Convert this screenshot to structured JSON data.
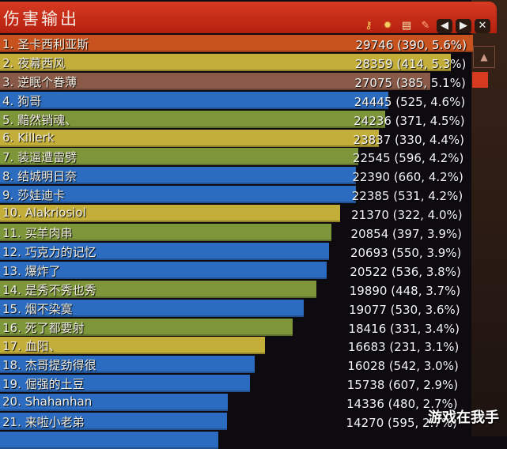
{
  "window": {
    "title": "伤害输出",
    "toolbar_icons": [
      "key-icon",
      "gear-icon",
      "document-icon",
      "report-icon",
      "prev-icon",
      "next-icon",
      "close-icon"
    ]
  },
  "max_value": 29746,
  "colors": {
    "orange": "#c8521e",
    "yellow": "#c2ae38",
    "brown": "#8a5a48",
    "blue": "#2b6cc0",
    "green": "#7d963a"
  },
  "rows": [
    {
      "name": "1. 圣卡西利亚斯",
      "value": "29746 (390, 5.6%)",
      "dmg": 29746,
      "color": "orange"
    },
    {
      "name": "2. 夜幕西风",
      "value": "28359 (414, 5.3%)",
      "dmg": 28359,
      "color": "yellow"
    },
    {
      "name": "3. 逆眠个眷薄",
      "value": "27075 (385, 5.1%)",
      "dmg": 27075,
      "color": "brown"
    },
    {
      "name": "4. 狗哥",
      "value": "24445 (525, 4.6%)",
      "dmg": 24445,
      "color": "blue"
    },
    {
      "name": "5. 黯然销魂、",
      "value": "24236 (371, 4.5%)",
      "dmg": 24236,
      "color": "green"
    },
    {
      "name": "6. Killerk",
      "value": "23837 (330, 4.4%)",
      "dmg": 23837,
      "color": "yellow"
    },
    {
      "name": "7. 装逼遭雷劈",
      "value": "22545 (596, 4.2%)",
      "dmg": 22545,
      "color": "green"
    },
    {
      "name": "8. 结城明日奈",
      "value": "22390 (660, 4.2%)",
      "dmg": 22390,
      "color": "blue"
    },
    {
      "name": "9. 莎娃迪卡",
      "value": "22385 (531, 4.2%)",
      "dmg": 22385,
      "color": "blue"
    },
    {
      "name": "10. Alakriosiol",
      "value": "21370 (322, 4.0%)",
      "dmg": 21370,
      "color": "yellow"
    },
    {
      "name": "11. 买羊肉串",
      "value": "20854 (397, 3.9%)",
      "dmg": 20854,
      "color": "green"
    },
    {
      "name": "12. 巧克力的记忆",
      "value": "20693 (550, 3.9%)",
      "dmg": 20693,
      "color": "blue"
    },
    {
      "name": "13. 爆炸了",
      "value": "20522 (536, 3.8%)",
      "dmg": 20522,
      "color": "blue"
    },
    {
      "name": "14. 是秀不秀也秀",
      "value": "19890 (448, 3.7%)",
      "dmg": 19890,
      "color": "green"
    },
    {
      "name": "15. 烟不染寞",
      "value": "19077 (530, 3.6%)",
      "dmg": 19077,
      "color": "blue"
    },
    {
      "name": "16. 死了都要射",
      "value": "18416 (331, 3.4%)",
      "dmg": 18416,
      "color": "green"
    },
    {
      "name": "17. 血阳、",
      "value": "16683 (231, 3.1%)",
      "dmg": 16683,
      "color": "yellow"
    },
    {
      "name": "18. 杰哥提劲得很",
      "value": "16028 (542, 3.0%)",
      "dmg": 16028,
      "color": "blue"
    },
    {
      "name": "19. 倔强的土豆",
      "value": "15738 (607, 2.9%)",
      "dmg": 15738,
      "color": "blue"
    },
    {
      "name": "20. Shahanhan",
      "value": "14336 (480, 2.7%)",
      "dmg": 14336,
      "color": "blue"
    },
    {
      "name": "21. 来啦小老弟",
      "value": "14270 (595, 2.7%)",
      "dmg": 14270,
      "color": "blue"
    }
  ],
  "watermark": "游戏在我手"
}
